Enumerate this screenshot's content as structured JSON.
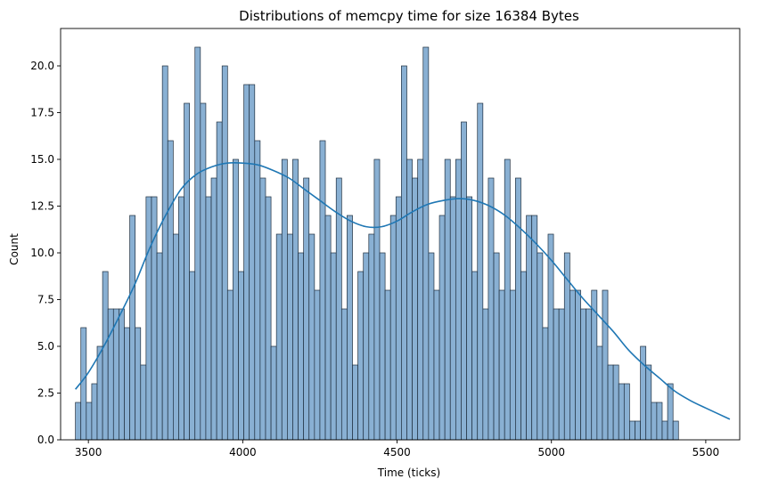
{
  "chart_data": {
    "type": "bar",
    "title": "Distributions of memcpy time for size 16384 Bytes",
    "xlabel": "Time (ticks)",
    "ylabel": "Count",
    "xlim": [
      3410,
      5610
    ],
    "ylim": [
      0,
      22
    ],
    "xticks": [
      3500,
      4000,
      4500,
      5000,
      5500
    ],
    "xtick_labels": [
      "3500",
      "4000",
      "4500",
      "5000",
      "5500"
    ],
    "yticks": [
      0,
      2.5,
      5,
      7.5,
      10,
      12.5,
      15,
      17.5,
      20
    ],
    "ytick_labels": [
      "0.0",
      "2.5",
      "5.0",
      "7.5",
      "10.0",
      "12.5",
      "15.0",
      "17.5",
      "20.0"
    ],
    "bin_start": 3458,
    "bin_width": 17.6,
    "counts": [
      2,
      6,
      2,
      3,
      5,
      9,
      7,
      7,
      7,
      6,
      12,
      6,
      4,
      13,
      13,
      10,
      20,
      16,
      11,
      13,
      18,
      9,
      21,
      18,
      13,
      14,
      17,
      20,
      8,
      15,
      9,
      19,
      19,
      16,
      14,
      13,
      5,
      11,
      15,
      11,
      15,
      10,
      14,
      11,
      8,
      16,
      12,
      10,
      14,
      7,
      12,
      4,
      9,
      10,
      11,
      15,
      10,
      8,
      12,
      13,
      20,
      15,
      14,
      15,
      21,
      10,
      8,
      12,
      15,
      13,
      15,
      17,
      13,
      9,
      18,
      7,
      14,
      10,
      8,
      15,
      8,
      14,
      9,
      12,
      12,
      10,
      6,
      11,
      7,
      7,
      10,
      8,
      8,
      7,
      7,
      8,
      5,
      8,
      4,
      4,
      3,
      3,
      1,
      1,
      5,
      4,
      2,
      2,
      1,
      3,
      1
    ],
    "kde": {
      "x": [
        3458,
        3500,
        3550,
        3600,
        3650,
        3700,
        3750,
        3800,
        3850,
        3900,
        3950,
        4000,
        4050,
        4100,
        4150,
        4200,
        4250,
        4300,
        4350,
        4400,
        4450,
        4500,
        4550,
        4600,
        4650,
        4700,
        4750,
        4800,
        4850,
        4900,
        4950,
        5000,
        5050,
        5100,
        5150,
        5200,
        5250,
        5300,
        5350,
        5400,
        5450,
        5500,
        5578
      ],
      "y": [
        2.7,
        3.6,
        5.0,
        6.6,
        8.3,
        10.3,
        12.0,
        13.4,
        14.2,
        14.6,
        14.8,
        14.8,
        14.7,
        14.4,
        14.0,
        13.4,
        12.8,
        12.2,
        11.7,
        11.4,
        11.4,
        11.7,
        12.2,
        12.6,
        12.8,
        12.9,
        12.8,
        12.5,
        12.0,
        11.3,
        10.5,
        9.6,
        8.6,
        7.6,
        6.7,
        5.8,
        4.8,
        4.0,
        3.3,
        2.6,
        2.1,
        1.7,
        1.1
      ]
    },
    "bar_color": "#89b0d3",
    "bar_edge_color": "#1f2f3f",
    "line_color": "#1f77b4",
    "grid": false,
    "legend": "none"
  }
}
